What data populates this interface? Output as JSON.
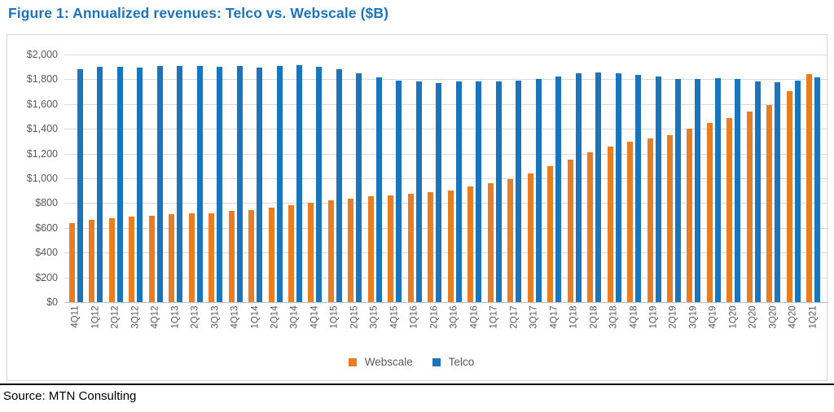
{
  "page": {
    "title": "Figure 1: Annualized revenues: Telco vs. Webscale ($B)",
    "source": "Source: MTN Consulting"
  },
  "colors": {
    "title": "#1B75BC",
    "webscale_bar": "#E87E23",
    "telco_bar": "#1B75BC",
    "gridline": "#D9D9D9",
    "axis_text": "#595959",
    "divider": "#000000"
  },
  "chart_data": {
    "type": "bar",
    "title": "Annualized revenues: Telco vs. Webscale ($B)",
    "xlabel": "",
    "ylabel": "",
    "ylim": [
      0,
      2000
    ],
    "ytick_step": 200,
    "ytick_labels": [
      "$0",
      "$200",
      "$400",
      "$600",
      "$800",
      "$1,000",
      "$1,200",
      "$1,400",
      "$1,600",
      "$1,800",
      "$2,000"
    ],
    "grid": "horizontal",
    "legend_position": "bottom",
    "categories": [
      "4Q11",
      "1Q12",
      "2Q12",
      "3Q12",
      "4Q12",
      "1Q13",
      "2Q13",
      "3Q13",
      "4Q13",
      "1Q14",
      "2Q14",
      "3Q14",
      "4Q14",
      "1Q15",
      "2Q15",
      "3Q15",
      "4Q15",
      "1Q16",
      "2Q16",
      "3Q16",
      "4Q16",
      "1Q17",
      "2Q17",
      "3Q17",
      "4Q17",
      "1Q18",
      "2Q18",
      "3Q18",
      "4Q18",
      "1Q19",
      "2Q19",
      "3Q19",
      "4Q19",
      "1Q20",
      "2Q20",
      "3Q20",
      "4Q20",
      "1Q21"
    ],
    "series": [
      {
        "name": "Webscale",
        "color": "#E87E23",
        "values": [
          640,
          665,
          680,
          690,
          700,
          710,
          715,
          720,
          735,
          745,
          760,
          785,
          805,
          820,
          835,
          855,
          865,
          875,
          885,
          900,
          935,
          960,
          995,
          1040,
          1100,
          1150,
          1210,
          1255,
          1295,
          1320,
          1350,
          1400,
          1450,
          1485,
          1540,
          1595,
          1705,
          1845
        ]
      },
      {
        "name": "Telco",
        "color": "#1B75BC",
        "values": [
          1880,
          1900,
          1900,
          1895,
          1910,
          1905,
          1910,
          1900,
          1905,
          1895,
          1905,
          1915,
          1900,
          1880,
          1850,
          1815,
          1790,
          1780,
          1770,
          1780,
          1785,
          1785,
          1790,
          1800,
          1820,
          1850,
          1855,
          1850,
          1835,
          1820,
          1805,
          1805,
          1810,
          1805,
          1780,
          1775,
          1790,
          1815
        ]
      }
    ]
  }
}
